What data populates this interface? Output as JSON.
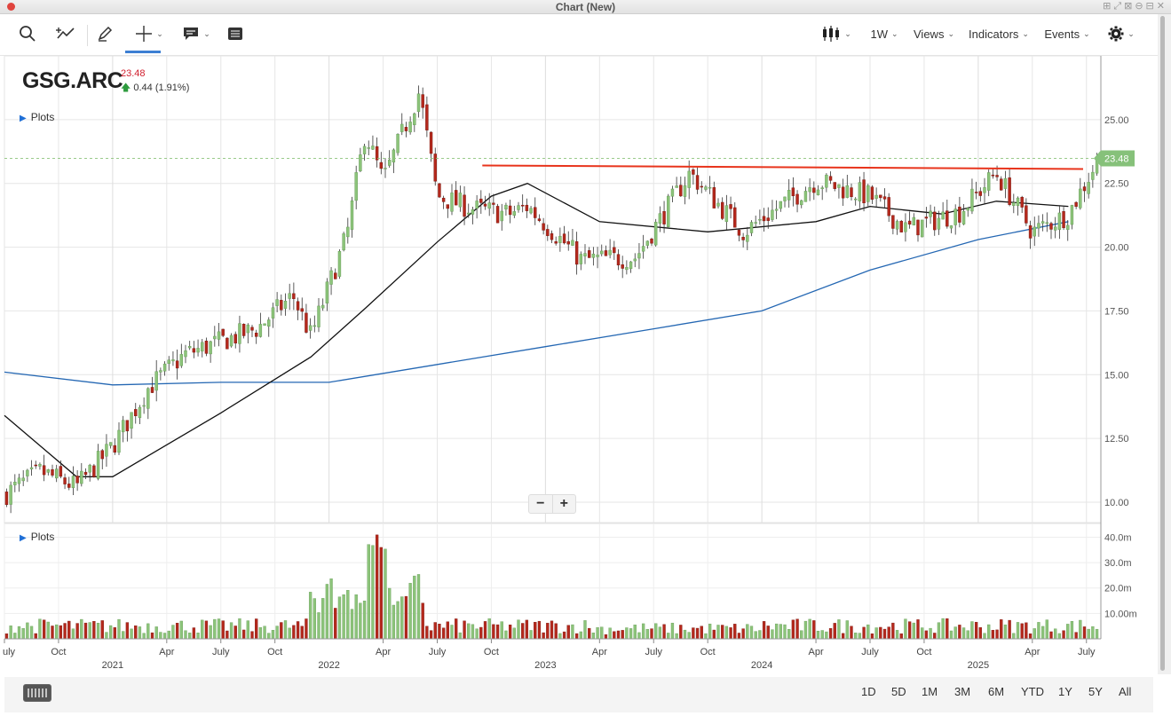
{
  "window": {
    "title": "Chart (New)"
  },
  "toolbar": {
    "interval_label": "1W",
    "views_label": "Views",
    "indicators_label": "Indicators",
    "events_label": "Events"
  },
  "symbol": {
    "ticker": "GSG.ARC",
    "last": "23.48",
    "change": "0.44 (1.91%)",
    "plots_label": "Plots",
    "volume_plots_label": "Plots"
  },
  "zoom": {
    "minus": "−",
    "plus": "+"
  },
  "price_axis": {
    "ticks": [
      "25.00",
      "22.50",
      "20.00",
      "17.50",
      "15.00",
      "12.50",
      "10.00"
    ],
    "last_tag": "23.48"
  },
  "volume_axis": {
    "ticks": [
      "40.0m",
      "30.0m",
      "20.0m",
      "10.00m"
    ]
  },
  "time_axis": {
    "months": [
      "uly",
      "Oct",
      "Apr",
      "July",
      "Oct",
      "Apr",
      "July",
      "Oct",
      "Apr",
      "July",
      "Oct",
      "Apr",
      "July",
      "Oct",
      "Apr",
      "July"
    ],
    "years": [
      "2021",
      "2022",
      "2023",
      "2024",
      "2025"
    ]
  },
  "ranges": [
    "1D",
    "5D",
    "1M",
    "3M",
    "6M",
    "YTD",
    "1Y",
    "5Y",
    "All"
  ],
  "colors": {
    "up": "#8cc47a",
    "down": "#b5281c",
    "resistance": "#e8341c",
    "ma_short": "#111111",
    "ma_long": "#2467b3",
    "last_tag_bg": "#86c17a"
  },
  "chart_data": {
    "type": "candlestick",
    "interval": "1W",
    "ylim": [
      9.2,
      27.5
    ],
    "x_range": [
      "2020-07",
      "2025-07"
    ],
    "resistance_level": 23.1,
    "close_path": [
      [
        "2020-07",
        10.3
      ],
      [
        "2020-09",
        11.2
      ],
      [
        "2020-11",
        10.6
      ],
      [
        "2021-01",
        12.2
      ],
      [
        "2021-03",
        14.5
      ],
      [
        "2021-05",
        15.8
      ],
      [
        "2021-07",
        16.3
      ],
      [
        "2021-09",
        16.8
      ],
      [
        "2021-11",
        18.1
      ],
      [
        "2021-12",
        16.5
      ],
      [
        "2022-02",
        20.5
      ],
      [
        "2022-03",
        24.5
      ],
      [
        "2022-04",
        22.6
      ],
      [
        "2022-06",
        26.1
      ],
      [
        "2022-07",
        22.0
      ],
      [
        "2022-09",
        21.5
      ],
      [
        "2022-11",
        21.3
      ],
      [
        "2022-12",
        21.6
      ],
      [
        "2023-03",
        19.5
      ],
      [
        "2023-06",
        19.6
      ],
      [
        "2023-09",
        22.9
      ],
      [
        "2023-12",
        20.6
      ],
      [
        "2024-04",
        22.6
      ],
      [
        "2024-07",
        22.0
      ],
      [
        "2024-09",
        20.7
      ],
      [
        "2024-12",
        21.4
      ],
      [
        "2025-02",
        22.9
      ],
      [
        "2025-04",
        20.6
      ],
      [
        "2025-06",
        21.3
      ],
      [
        "2025-06",
        23.48
      ]
    ],
    "ma_short": [
      [
        "2020-07",
        13.4
      ],
      [
        "2020-11",
        11.0
      ],
      [
        "2021-01",
        11.0
      ],
      [
        "2021-07",
        13.5
      ],
      [
        "2021-12",
        15.7
      ],
      [
        "2022-03",
        17.6
      ],
      [
        "2022-07",
        20.2
      ],
      [
        "2022-10",
        22.0
      ],
      [
        "2022-12",
        22.5
      ],
      [
        "2023-04",
        21.0
      ],
      [
        "2023-10",
        20.6
      ],
      [
        "2024-04",
        21.0
      ],
      [
        "2024-07",
        21.6
      ],
      [
        "2024-11",
        21.3
      ],
      [
        "2025-02",
        21.8
      ],
      [
        "2025-06",
        21.6
      ]
    ],
    "ma_long": [
      [
        "2020-07",
        15.1
      ],
      [
        "2021-01",
        14.6
      ],
      [
        "2021-07",
        14.7
      ],
      [
        "2022-01",
        14.7
      ],
      [
        "2022-07",
        15.4
      ],
      [
        "2023-01",
        16.1
      ],
      [
        "2023-07",
        16.8
      ],
      [
        "2024-01",
        17.5
      ],
      [
        "2024-07",
        19.1
      ],
      [
        "2025-01",
        20.3
      ],
      [
        "2025-06",
        21.0
      ]
    ],
    "volume_peak_m": 42
  }
}
